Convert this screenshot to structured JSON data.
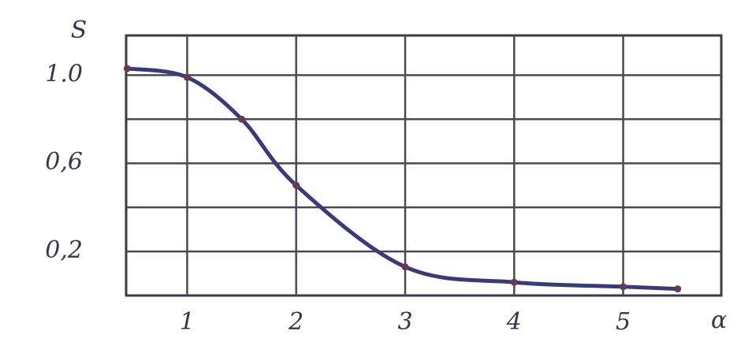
{
  "chart_data": {
    "type": "line",
    "y_label": "S",
    "x_label": "α",
    "x": [
      0.45,
      1,
      1.5,
      2,
      3,
      4,
      5,
      5.5
    ],
    "series": [
      {
        "color": "#3b3a78",
        "values": [
          1.03,
          0.99,
          0.8,
          0.5,
          0.13,
          0.06,
          0.04,
          0.03
        ]
      }
    ],
    "xlim": [
      0.44,
      5.9
    ],
    "ylim": [
      0,
      1.18
    ],
    "xticks": [
      1,
      2,
      3,
      4,
      5
    ],
    "yticks": [
      {
        "value": 1.0,
        "label": "1.0"
      },
      {
        "value": 0.6,
        "label": "0,6"
      },
      {
        "value": 0.2,
        "label": "0,2"
      }
    ],
    "ygrid": [
      0.2,
      0.4,
      0.6,
      0.8,
      1.0
    ],
    "grid": true
  }
}
